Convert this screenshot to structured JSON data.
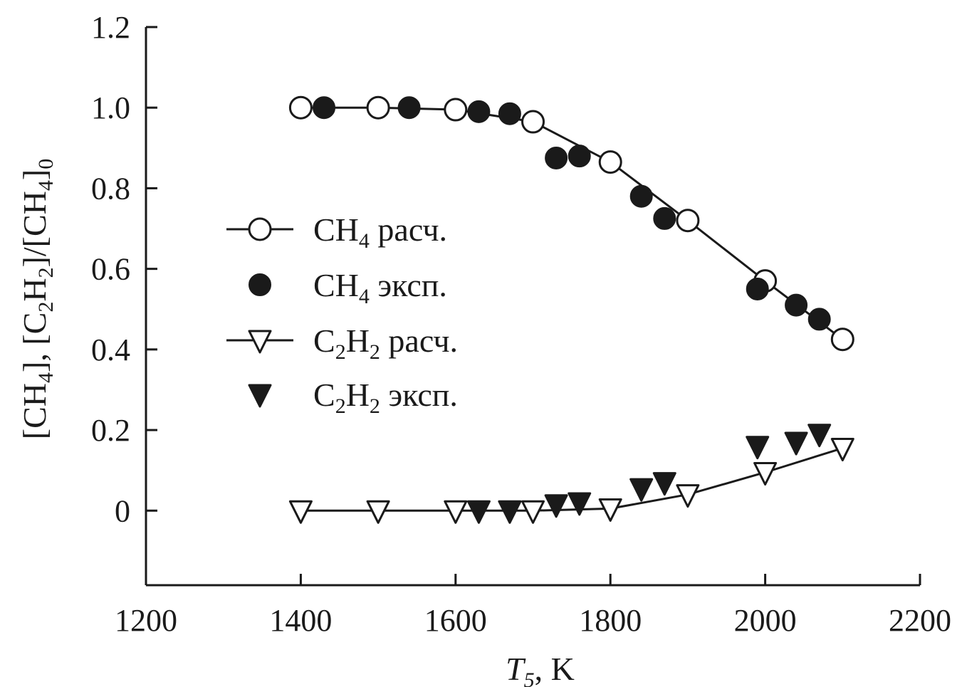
{
  "chart_data": {
    "type": "line",
    "xlabel": {
      "main": "T",
      "sub": "5",
      "unit": ", K"
    },
    "ylabel": {
      "parts": [
        {
          "text": "[CH"
        },
        {
          "text": "4",
          "sub": true
        },
        {
          "text": "], [C"
        },
        {
          "text": "2",
          "sub": true
        },
        {
          "text": "H"
        },
        {
          "text": "2",
          "sub": true
        },
        {
          "text": "]/[CH"
        },
        {
          "text": "4",
          "sub": true
        },
        {
          "text": "]"
        },
        {
          "text": "0",
          "sub": true
        }
      ]
    },
    "xlim": [
      1200,
      2200
    ],
    "ylim": [
      -0.185,
      1.2
    ],
    "x_ticks": [
      1200,
      1400,
      1600,
      1800,
      2000,
      2200
    ],
    "x_tick_labels": [
      "1200",
      "1400",
      "1600",
      "1800",
      "2000",
      "2200"
    ],
    "y_ticks": [
      0,
      0.2,
      0.4,
      0.6,
      0.8,
      1.0,
      1.2
    ],
    "y_tick_labels": [
      "0",
      "0.2",
      "0.4",
      "0.6",
      "0.8",
      "1.0",
      "1.2"
    ],
    "grid": false,
    "legend_position": "left-middle",
    "series": [
      {
        "name": "CH4 расч.",
        "legend": {
          "base": "CH",
          "sub": "4",
          "rest": " расч."
        },
        "marker": "circle-open",
        "line": true,
        "x": [
          1400,
          1500,
          1600,
          1700,
          1800,
          1900,
          2000,
          2100
        ],
        "y": [
          1.0,
          1.0,
          0.995,
          0.965,
          0.865,
          0.72,
          0.57,
          0.425
        ]
      },
      {
        "name": "CH4 эксп.",
        "legend": {
          "base": "CH",
          "sub": "4",
          "rest": " эксп."
        },
        "marker": "circle-filled",
        "line": false,
        "x": [
          1430,
          1540,
          1630,
          1670,
          1730,
          1760,
          1840,
          1870,
          1990,
          2040,
          2070
        ],
        "y": [
          1.0,
          1.0,
          0.99,
          0.985,
          0.875,
          0.88,
          0.78,
          0.725,
          0.55,
          0.51,
          0.475
        ]
      },
      {
        "name": "C2H2 расч.",
        "legend": {
          "base": "C",
          "sub": "2",
          "base2": "H",
          "sub2": "2",
          "rest": " расч."
        },
        "marker": "triangle-down-open",
        "line": true,
        "x": [
          1400,
          1500,
          1600,
          1700,
          1800,
          1900,
          2000,
          2100
        ],
        "y": [
          0.0,
          0.0,
          0.0,
          0.0,
          0.005,
          0.04,
          0.095,
          0.155
        ]
      },
      {
        "name": "C2H2 эксп.",
        "legend": {
          "base": "C",
          "sub": "2",
          "base2": "H",
          "sub2": "2",
          "rest": " эксп."
        },
        "marker": "triangle-down-filled",
        "line": false,
        "x": [
          1630,
          1670,
          1730,
          1760,
          1840,
          1870,
          1990,
          2040,
          2070
        ],
        "y": [
          0.0,
          0.0,
          0.015,
          0.02,
          0.055,
          0.07,
          0.16,
          0.17,
          0.19
        ]
      }
    ]
  }
}
